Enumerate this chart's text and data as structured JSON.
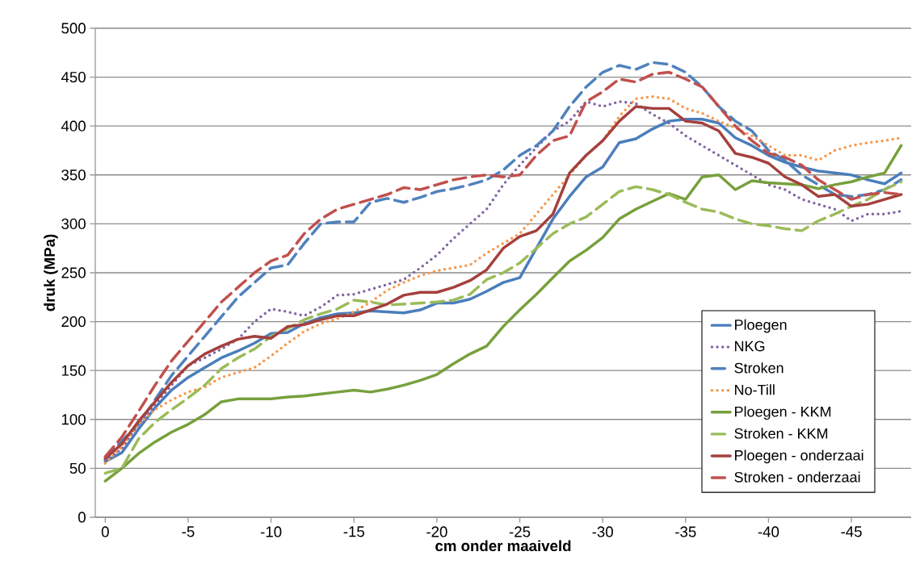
{
  "chart_data": {
    "type": "line",
    "xlabel": "cm onder maaiveld",
    "ylabel": "druk (MPa)",
    "x": [
      0,
      -1,
      -2,
      -3,
      -4,
      -5,
      -6,
      -7,
      -8,
      -9,
      -10,
      -11,
      -12,
      -13,
      -14,
      -15,
      -16,
      -17,
      -18,
      -19,
      -20,
      -21,
      -22,
      -23,
      -24,
      -25,
      -26,
      -27,
      -28,
      -29,
      -30,
      -31,
      -32,
      -33,
      -34,
      -35,
      -36,
      -37,
      -38,
      -39,
      -40,
      -41,
      -42,
      -43,
      -44,
      -45,
      -46,
      -47,
      -48
    ],
    "xlim": [
      0.6,
      -48.6
    ],
    "xticks": [
      0,
      -5,
      -10,
      -15,
      -20,
      -25,
      -30,
      -35,
      -40,
      -45
    ],
    "ylim": [
      0,
      500
    ],
    "yticks": [
      0,
      50,
      100,
      150,
      200,
      250,
      300,
      350,
      400,
      450,
      500
    ],
    "grid": "y",
    "legend": "right",
    "marker": "none",
    "series": [
      {
        "name": "Ploegen",
        "color": "#4a7ebb",
        "line_style": "solid",
        "values": [
          57,
          66,
          90,
          112,
          130,
          143,
          153,
          163,
          170,
          178,
          188,
          189,
          198,
          204,
          208,
          209,
          211,
          210,
          209,
          212,
          219,
          219,
          223,
          231,
          240,
          245,
          275,
          305,
          328,
          348,
          358,
          383,
          387,
          397,
          405,
          407,
          407,
          403,
          388,
          380,
          370,
          363,
          358,
          354,
          352,
          350,
          345,
          341,
          352
        ]
      },
      {
        "name": "NKG",
        "color": "#8064a2",
        "line_style": "dotted",
        "values": [
          58,
          70,
          95,
          115,
          135,
          155,
          163,
          172,
          182,
          200,
          213,
          210,
          206,
          215,
          227,
          228,
          233,
          238,
          243,
          255,
          268,
          285,
          300,
          315,
          340,
          360,
          378,
          395,
          405,
          425,
          420,
          425,
          423,
          412,
          403,
          390,
          380,
          370,
          360,
          350,
          340,
          335,
          325,
          320,
          315,
          303,
          310,
          310,
          313
        ]
      },
      {
        "name": "Stroken",
        "color": "#4f81bd",
        "line_style": "dashed",
        "values": [
          60,
          78,
          95,
          120,
          145,
          165,
          185,
          205,
          225,
          240,
          255,
          258,
          280,
          300,
          302,
          302,
          322,
          326,
          322,
          327,
          333,
          336,
          340,
          345,
          355,
          370,
          380,
          395,
          420,
          440,
          455,
          462,
          458,
          465,
          463,
          455,
          440,
          420,
          405,
          395,
          375,
          365,
          350,
          340,
          330,
          328,
          330,
          335,
          345
        ]
      },
      {
        "name": "No-Till",
        "color": "#f79646",
        "line_style": "dotted",
        "values": [
          55,
          72,
          95,
          110,
          120,
          128,
          133,
          143,
          148,
          153,
          165,
          178,
          190,
          198,
          203,
          210,
          220,
          232,
          240,
          247,
          252,
          255,
          258,
          270,
          280,
          290,
          310,
          330,
          350,
          370,
          385,
          410,
          428,
          430,
          428,
          418,
          413,
          405,
          398,
          390,
          380,
          370,
          370,
          365,
          375,
          380,
          383,
          385,
          388
        ]
      },
      {
        "name": "Ploegen - KKM",
        "color": "#77a03c",
        "line_style": "solid",
        "values": [
          37,
          50,
          65,
          77,
          87,
          95,
          105,
          118,
          121,
          121,
          121,
          123,
          124,
          126,
          128,
          130,
          128,
          131,
          135,
          140,
          146,
          157,
          167,
          175,
          195,
          212,
          228,
          245,
          262,
          273,
          286,
          305,
          315,
          323,
          331,
          325,
          348,
          350,
          335,
          344,
          342,
          341,
          340,
          336,
          340,
          343,
          348,
          352,
          380
        ]
      },
      {
        "name": "Stroken - KKM",
        "color": "#9bbb59",
        "line_style": "dashed",
        "values": [
          45,
          50,
          80,
          97,
          110,
          122,
          135,
          152,
          163,
          172,
          185,
          193,
          202,
          208,
          213,
          222,
          220,
          217,
          218,
          219,
          220,
          222,
          228,
          243,
          250,
          260,
          275,
          290,
          300,
          307,
          320,
          333,
          338,
          335,
          330,
          322,
          315,
          312,
          305,
          300,
          298,
          295,
          293,
          303,
          310,
          318,
          325,
          335,
          343
        ]
      },
      {
        "name": "Ploegen - onderzaai",
        "color": "#a5403d",
        "line_style": "solid",
        "values": [
          60,
          75,
          98,
          118,
          138,
          155,
          167,
          175,
          182,
          185,
          183,
          195,
          197,
          202,
          206,
          206,
          212,
          218,
          227,
          230,
          230,
          235,
          242,
          253,
          275,
          287,
          293,
          310,
          352,
          370,
          385,
          405,
          420,
          418,
          418,
          405,
          403,
          395,
          372,
          368,
          362,
          348,
          340,
          328,
          330,
          318,
          320,
          325,
          330
        ]
      },
      {
        "name": "Stroken - onderzaai",
        "color": "#c0504d",
        "line_style": "dashed",
        "values": [
          62,
          82,
          108,
          135,
          160,
          180,
          200,
          220,
          235,
          250,
          262,
          268,
          290,
          305,
          315,
          320,
          325,
          330,
          337,
          335,
          340,
          345,
          348,
          350,
          348,
          350,
          370,
          385,
          390,
          425,
          435,
          448,
          445,
          453,
          455,
          448,
          440,
          420,
          400,
          385,
          372,
          368,
          360,
          345,
          335,
          325,
          330,
          332,
          330
        ]
      }
    ]
  }
}
